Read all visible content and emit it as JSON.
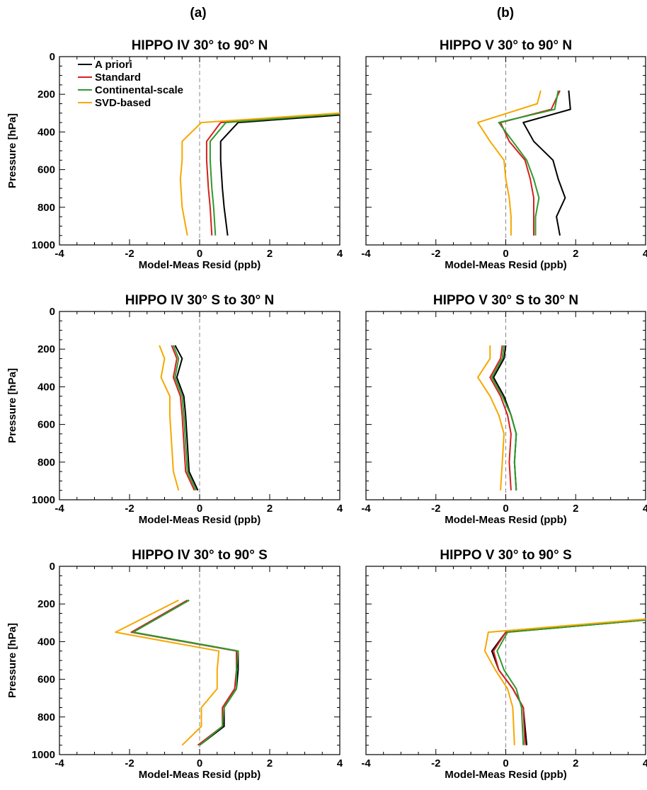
{
  "figure": {
    "column_labels": [
      "(a)",
      "(b)"
    ]
  },
  "legend": {
    "placement": "top-left (first panel)",
    "entries": [
      "A priori",
      "Standard",
      "Continental-scale",
      "SVD-based"
    ]
  },
  "colors": {
    "A priori": "#000000",
    "Standard": "#d62020",
    "Continental-scale": "#2e9a2e",
    "SVD-based": "#f5a800",
    "zero_line": "#888888"
  },
  "chart_data": [
    {
      "type": "line",
      "title": "HIPPO IV 30° to 90° N",
      "xlabel": "Model-Meas Resid (ppb)",
      "ylabel": "Pressure [hPa]",
      "xlim": [
        -4,
        4
      ],
      "ylim": [
        1000,
        0
      ],
      "xticks": [
        "-4",
        "-2",
        "0",
        "2",
        "4"
      ],
      "yticks": [
        "0",
        "200",
        "400",
        "600",
        "800",
        "1000"
      ],
      "grid": false,
      "legend": true,
      "series": [
        {
          "name": "A priori",
          "x": [
            4.0,
            1.1,
            0.6,
            0.6,
            0.65,
            0.7,
            0.8
          ],
          "y": [
            310,
            350,
            450,
            550,
            700,
            800,
            950
          ]
        },
        {
          "name": "Standard",
          "x": [
            4.0,
            0.6,
            0.2,
            0.2,
            0.25,
            0.3,
            0.35
          ],
          "y": [
            305,
            350,
            450,
            550,
            700,
            800,
            950
          ]
        },
        {
          "name": "Continental-scale",
          "x": [
            4.0,
            0.75,
            0.3,
            0.3,
            0.35,
            0.4,
            0.45
          ],
          "y": [
            305,
            350,
            450,
            550,
            700,
            800,
            950
          ]
        },
        {
          "name": "SVD-based",
          "x": [
            4.0,
            0.05,
            -0.5,
            -0.5,
            -0.55,
            -0.5,
            -0.35
          ],
          "y": [
            300,
            350,
            450,
            550,
            650,
            800,
            950
          ]
        }
      ]
    },
    {
      "type": "line",
      "title": "HIPPO V 30° to 90° N",
      "xlabel": "Model-Meas Resid (ppb)",
      "ylabel": "",
      "xlim": [
        -4,
        4
      ],
      "ylim": [
        1000,
        0
      ],
      "xticks": [
        "-4",
        "-2",
        "0",
        "2",
        "4"
      ],
      "yticks": [],
      "grid": false,
      "legend": false,
      "series": [
        {
          "name": "A priori",
          "x": [
            1.8,
            1.85,
            0.5,
            0.8,
            1.35,
            1.5,
            1.7,
            1.45,
            1.55
          ],
          "y": [
            180,
            280,
            350,
            450,
            550,
            650,
            750,
            850,
            950
          ]
        },
        {
          "name": "Standard",
          "x": [
            1.55,
            1.3,
            -0.15,
            0.1,
            0.55,
            0.7,
            0.8,
            0.8,
            0.8
          ],
          "y": [
            180,
            280,
            350,
            450,
            550,
            650,
            750,
            850,
            950
          ]
        },
        {
          "name": "Continental-scale",
          "x": [
            1.5,
            1.4,
            -0.2,
            0.2,
            0.6,
            0.8,
            0.95,
            0.85,
            0.85
          ],
          "y": [
            180,
            280,
            350,
            450,
            550,
            650,
            750,
            850,
            950
          ]
        },
        {
          "name": "SVD-based",
          "x": [
            1.0,
            0.9,
            -0.8,
            -0.45,
            -0.05,
            0.0,
            0.1,
            0.15,
            0.15
          ],
          "y": [
            180,
            250,
            350,
            450,
            550,
            650,
            750,
            850,
            950
          ]
        }
      ]
    },
    {
      "type": "line",
      "title": "HIPPO IV 30° S to 30° N",
      "xlabel": "Model-Meas Resid (ppb)",
      "ylabel": "Pressure [hPa]",
      "xlim": [
        -4,
        4
      ],
      "ylim": [
        1000,
        0
      ],
      "xticks": [
        "-4",
        "-2",
        "0",
        "2",
        "4"
      ],
      "yticks": [
        "0",
        "200",
        "400",
        "600",
        "800",
        "1000"
      ],
      "grid": false,
      "legend": false,
      "series": [
        {
          "name": "A priori",
          "x": [
            -0.7,
            -0.5,
            -0.65,
            -0.45,
            -0.4,
            -0.35,
            -0.3,
            -0.05
          ],
          "y": [
            180,
            250,
            350,
            450,
            550,
            700,
            850,
            950
          ]
        },
        {
          "name": "Standard",
          "x": [
            -0.8,
            -0.65,
            -0.75,
            -0.55,
            -0.5,
            -0.45,
            -0.4,
            -0.15
          ],
          "y": [
            180,
            250,
            350,
            450,
            550,
            700,
            850,
            950
          ]
        },
        {
          "name": "Continental-scale",
          "x": [
            -0.75,
            -0.6,
            -0.7,
            -0.5,
            -0.45,
            -0.4,
            -0.35,
            -0.1
          ],
          "y": [
            180,
            250,
            350,
            450,
            550,
            700,
            850,
            950
          ]
        },
        {
          "name": "SVD-based",
          "x": [
            -1.15,
            -1.0,
            -1.1,
            -0.85,
            -0.85,
            -0.8,
            -0.75,
            -0.6
          ],
          "y": [
            180,
            250,
            350,
            450,
            550,
            700,
            850,
            950
          ]
        }
      ]
    },
    {
      "type": "line",
      "title": "HIPPO V 30° S to 30° N",
      "xlabel": "Model-Meas Resid (ppb)",
      "ylabel": "",
      "xlim": [
        -4,
        4
      ],
      "ylim": [
        1000,
        0
      ],
      "xticks": [
        "-4",
        "-2",
        "0",
        "2",
        "4"
      ],
      "yticks": [],
      "grid": false,
      "legend": false,
      "series": [
        {
          "name": "A priori",
          "x": [
            0.0,
            -0.05,
            -0.35,
            -0.05,
            0.15,
            0.3,
            0.25,
            0.3
          ],
          "y": [
            180,
            250,
            350,
            450,
            550,
            650,
            800,
            950
          ]
        },
        {
          "name": "Standard",
          "x": [
            -0.1,
            -0.15,
            -0.45,
            -0.15,
            0.05,
            0.15,
            0.1,
            0.15
          ],
          "y": [
            180,
            250,
            350,
            450,
            550,
            650,
            800,
            950
          ]
        },
        {
          "name": "Continental-scale",
          "x": [
            -0.05,
            -0.1,
            -0.4,
            -0.1,
            0.15,
            0.3,
            0.25,
            0.3
          ],
          "y": [
            180,
            250,
            350,
            450,
            550,
            650,
            800,
            950
          ]
        },
        {
          "name": "SVD-based",
          "x": [
            -0.45,
            -0.45,
            -0.8,
            -0.45,
            -0.2,
            -0.05,
            -0.1,
            -0.15
          ],
          "y": [
            180,
            250,
            350,
            450,
            550,
            650,
            800,
            950
          ]
        }
      ]
    },
    {
      "type": "line",
      "title": "HIPPO IV 30° to 90° S",
      "xlabel": "Model-Meas Resid (ppb)",
      "ylabel": "Pressure [hPa]",
      "xlim": [
        -4,
        4
      ],
      "ylim": [
        1000,
        0
      ],
      "xticks": [
        "-4",
        "-2",
        "0",
        "2",
        "4"
      ],
      "yticks": [
        "0",
        "200",
        "400",
        "600",
        "800",
        "1000"
      ],
      "grid": false,
      "legend": false,
      "series": [
        {
          "name": "A priori",
          "x": [
            -0.3,
            -1.9,
            1.1,
            1.1,
            1.05,
            0.7,
            0.7,
            0.0
          ],
          "y": [
            180,
            350,
            450,
            550,
            650,
            750,
            850,
            950
          ]
        },
        {
          "name": "Standard",
          "x": [
            -0.35,
            -1.95,
            1.05,
            1.05,
            1.0,
            0.65,
            0.65,
            -0.05
          ],
          "y": [
            180,
            350,
            450,
            550,
            650,
            750,
            850,
            950
          ]
        },
        {
          "name": "Continental-scale",
          "x": [
            -0.3,
            -1.9,
            1.1,
            1.05,
            1.05,
            0.7,
            0.65,
            0.0
          ],
          "y": [
            180,
            350,
            450,
            550,
            650,
            750,
            850,
            950
          ]
        },
        {
          "name": "SVD-based",
          "x": [
            -0.6,
            -2.4,
            0.55,
            0.5,
            0.5,
            0.05,
            0.05,
            -0.5
          ],
          "y": [
            180,
            350,
            450,
            550,
            650,
            750,
            850,
            950
          ]
        }
      ]
    },
    {
      "type": "line",
      "title": "HIPPO V 30° to 90° S",
      "xlabel": "Model-Meas Resid (ppb)",
      "ylabel": "",
      "xlim": [
        -4,
        4
      ],
      "ylim": [
        1000,
        0
      ],
      "xticks": [
        "-4",
        "-2",
        "0",
        "2",
        "4"
      ],
      "yticks": [],
      "grid": false,
      "legend": false,
      "series": [
        {
          "name": "A priori",
          "x": [
            4.0,
            0.0,
            -0.4,
            -0.2,
            0.2,
            0.5,
            0.6
          ],
          "y": [
            285,
            350,
            450,
            550,
            650,
            750,
            950
          ]
        },
        {
          "name": "Standard",
          "x": [
            4.0,
            0.0,
            -0.35,
            -0.2,
            0.2,
            0.5,
            0.55
          ],
          "y": [
            285,
            350,
            450,
            550,
            650,
            750,
            950
          ]
        },
        {
          "name": "Continental-scale",
          "x": [
            4.0,
            0.05,
            -0.25,
            -0.05,
            0.3,
            0.45,
            0.5
          ],
          "y": [
            285,
            350,
            450,
            550,
            650,
            750,
            950
          ]
        },
        {
          "name": "SVD-based",
          "x": [
            4.0,
            -0.5,
            -0.6,
            -0.3,
            0.05,
            0.2,
            0.25
          ],
          "y": [
            280,
            350,
            450,
            550,
            650,
            750,
            950
          ]
        }
      ]
    }
  ]
}
